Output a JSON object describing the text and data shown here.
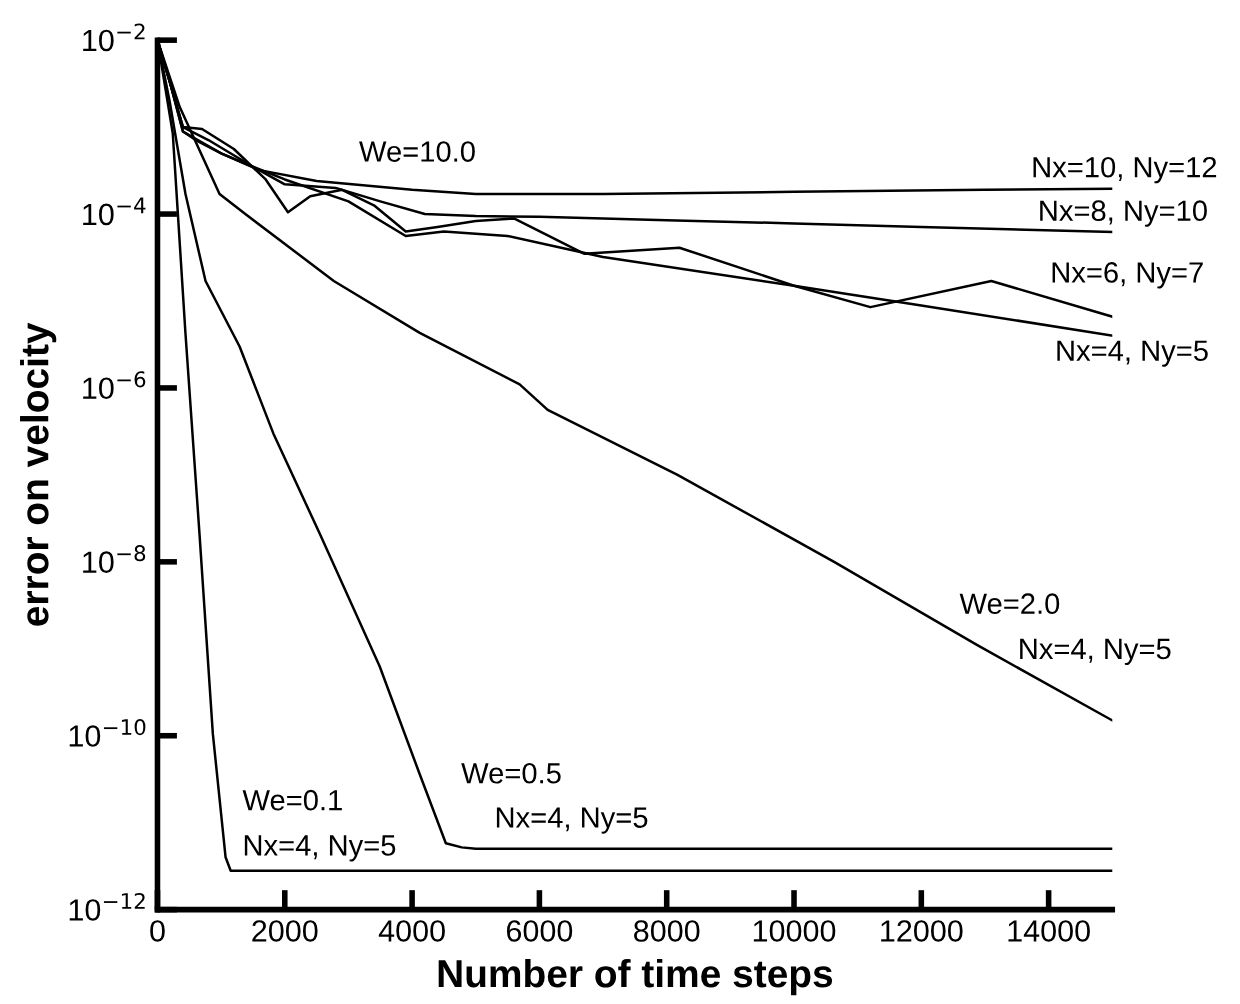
{
  "chart_data": {
    "type": "line",
    "xlabel": "Number of time steps",
    "ylabel": "error on velocity",
    "xlim": [
      0,
      15000
    ],
    "xticks": [
      0,
      2000,
      4000,
      6000,
      8000,
      10000,
      12000,
      14000
    ],
    "ylim": [
      1e-12,
      0.01
    ],
    "log": "y",
    "yticks": [
      {
        "value": 1e-12,
        "label": "10$^{−12}$"
      },
      {
        "value": 1e-10,
        "label": "10$^{−10}$"
      },
      {
        "value": 1e-08,
        "label": "10$^{−8}$"
      },
      {
        "value": 1e-06,
        "label": "10$^{−6}$"
      },
      {
        "value": 0.0001,
        "label": "10$^{−4}$"
      },
      {
        "value": 0.01,
        "label": "10$^{−2}$"
      }
    ],
    "grid": false,
    "legend": false,
    "marker": "none",
    "line_style": "solid",
    "series": [
      {
        "color": "#000000",
        "x": [
          0,
          200,
          400,
          1000,
          1600,
          2500,
          4000,
          5000,
          7000,
          10000,
          13000,
          15000
        ],
        "values": [
          0.01,
          0.0032,
          0.00089,
          0.0005,
          0.00032,
          0.00024,
          0.00019,
          0.00017,
          0.00017,
          0.00018,
          0.00019,
          0.000195
        ]
      },
      {
        "color": "#000000",
        "x": [
          0,
          200,
          400,
          800,
          1500,
          2000,
          2800,
          3500,
          4200,
          5000,
          6000,
          8000,
          10000,
          12000,
          15000
        ],
        "values": [
          0.01,
          0.0032,
          0.001,
          0.00071,
          0.00035,
          0.00022,
          0.0002,
          0.00014,
          0.0001,
          9.5e-05,
          9.3e-05,
          8.5e-05,
          7.8e-05,
          7.1e-05,
          6.2e-05
        ]
      },
      {
        "color": "#000000",
        "x": [
          0,
          200,
          400,
          700,
          1200,
          1700,
          2050,
          2400,
          2900,
          3400,
          3900,
          4400,
          5000,
          5600,
          6700,
          8200,
          10000,
          11200,
          13100,
          15000
        ],
        "values": [
          0.01,
          0.0032,
          0.001,
          0.00095,
          0.00056,
          0.00025,
          0.000105,
          0.00016,
          0.00019,
          0.000126,
          6.3e-05,
          7.1e-05,
          8.3e-05,
          8.9e-05,
          3.5e-05,
          4.1e-05,
          1.5e-05,
          8.5e-06,
          1.7e-05,
          6.6e-06
        ]
      },
      {
        "color": "#000000",
        "x": [
          0,
          200,
          400,
          600,
          1000,
          1500,
          2000,
          3000,
          3900,
          4500,
          5500,
          7000,
          10000,
          12000,
          15000
        ],
        "values": [
          0.01,
          0.0032,
          0.00089,
          0.00071,
          0.0005,
          0.00035,
          0.00025,
          0.00014,
          5.6e-05,
          6.3e-05,
          5.6e-05,
          3.2e-05,
          1.5e-05,
          8.9e-06,
          4e-06
        ]
      },
      {
        "color": "#000000",
        "x": [
          0,
          350,
          975,
          1380,
          2770,
          4120,
          5690,
          6130,
          8170,
          10630,
          12880,
          15000
        ],
        "values": [
          0.01,
          0.0017,
          0.00017,
          0.0001,
          1.7e-05,
          4.3e-06,
          1.1e-06,
          5.6e-07,
          1e-07,
          1e-08,
          1.1e-09,
          1.5e-10
        ]
      },
      {
        "color": "#000000",
        "x": [
          0,
          190,
          440,
          755,
          1290,
          1820,
          2550,
          3490,
          4120,
          4530,
          4780,
          5000,
          15000
        ],
        "values": [
          0.01,
          0.002,
          0.00017,
          1.7e-05,
          3e-06,
          3e-07,
          2.1e-08,
          6.3e-10,
          3.6e-11,
          5.8e-12,
          5.2e-12,
          5e-12,
          5e-12
        ]
      },
      {
        "color": "#000000",
        "x": [
          0,
          240,
          440,
          660,
          870,
          1070,
          1150,
          15000
        ],
        "values": [
          0.01,
          0.00085,
          4.2e-06,
          2.1e-08,
          1.05e-10,
          4e-12,
          2.8e-12,
          2.8e-12
        ]
      }
    ],
    "annotations": [
      "We=10.0",
      "Nx=10, Ny=12",
      "Nx=8, Ny=10",
      "Nx=6, Ny=7",
      "Nx=4, Ny=5",
      "We=2.0",
      "Nx=4, Ny=5",
      "We=0.5",
      "Nx=4, Ny=5",
      "We=0.1",
      "Nx=4, Ny=5"
    ]
  }
}
